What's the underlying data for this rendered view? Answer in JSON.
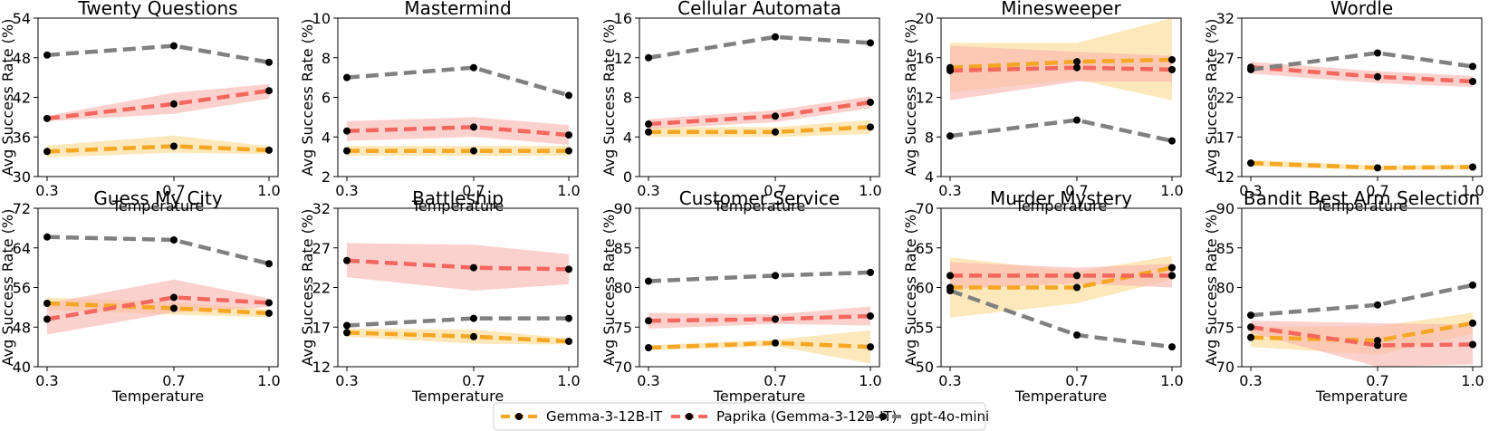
{
  "x_ticks": [
    "0.3",
    "0.7",
    "1.0"
  ],
  "x_values": [
    0.3,
    0.7,
    1.0
  ],
  "xlabel": "Temperature",
  "ylabel": "Avg Success Rate (%)",
  "series": [
    {
      "key": "gemma",
      "name": "Gemma-3-12B-IT",
      "color": "#f5a623",
      "band": "#fcd98e"
    },
    {
      "key": "paprika",
      "name": "Paprika (Gemma-3-12B-IT)",
      "color": "#f4675e",
      "band": "#f9b3ae"
    },
    {
      "key": "gpt",
      "name": "gpt-4o-mini",
      "color": "#808080",
      "band": "#cccccc"
    }
  ],
  "chart_data": [
    {
      "type": "line",
      "title": "Twenty Questions",
      "ylim": [
        30,
        54
      ],
      "yticks": [
        30,
        36,
        42,
        48,
        54
      ],
      "gemma": [
        33.8,
        34.6,
        34.0
      ],
      "gemma_band": [
        [
          32.9,
          34.7
        ],
        [
          33.6,
          36.2
        ],
        [
          33.4,
          34.6
        ]
      ],
      "paprika": [
        38.8,
        41.0,
        43.0
      ],
      "paprika_band": [
        [
          38.4,
          39.2
        ],
        [
          39.5,
          42.7
        ],
        [
          41.8,
          44.0
        ]
      ],
      "gpt": [
        48.4,
        49.8,
        47.3
      ]
    },
    {
      "type": "line",
      "title": "Mastermind",
      "ylim": [
        2,
        10
      ],
      "yticks": [
        2,
        4,
        6,
        8,
        10
      ],
      "gemma": [
        3.3,
        3.3,
        3.3
      ],
      "gemma_band": [
        [
          3.05,
          3.55
        ],
        [
          3.05,
          3.55
        ],
        [
          3.05,
          3.55
        ]
      ],
      "paprika": [
        4.3,
        4.5,
        4.1
      ],
      "paprika_band": [
        [
          3.8,
          4.8
        ],
        [
          4.0,
          5.0
        ],
        [
          3.6,
          4.6
        ]
      ],
      "gpt": [
        7.0,
        7.5,
        6.1
      ]
    },
    {
      "type": "line",
      "title": "Cellular Automata",
      "ylim": [
        0,
        16
      ],
      "yticks": [
        0,
        4,
        8,
        12,
        16
      ],
      "gemma": [
        4.5,
        4.5,
        5.0
      ],
      "gemma_band": [
        [
          4.0,
          5.0
        ],
        [
          4.0,
          5.0
        ],
        [
          4.3,
          5.7
        ]
      ],
      "paprika": [
        5.3,
        6.1,
        7.5
      ],
      "paprika_band": [
        [
          4.8,
          5.8
        ],
        [
          5.5,
          6.7
        ],
        [
          6.9,
          8.1
        ]
      ],
      "gpt": [
        12.0,
        14.1,
        13.5
      ]
    },
    {
      "type": "line",
      "title": "Minesweeper",
      "ylim": [
        4,
        20
      ],
      "yticks": [
        4,
        8,
        12,
        16,
        20
      ],
      "gemma": [
        15.0,
        15.6,
        15.8
      ],
      "gemma_band": [
        [
          12.5,
          17.5
        ],
        [
          13.8,
          17.5
        ],
        [
          11.7,
          20.0
        ]
      ],
      "paprika": [
        14.7,
        15.0,
        14.8
      ],
      "paprika_band": [
        [
          11.7,
          17.2
        ],
        [
          13.6,
          16.6
        ],
        [
          13.6,
          16.2
        ]
      ],
      "gpt": [
        8.1,
        9.7,
        7.6
      ]
    },
    {
      "type": "line",
      "title": "Wordle",
      "ylim": [
        12,
        32
      ],
      "yticks": [
        12,
        17,
        22,
        27,
        32
      ],
      "gemma": [
        13.7,
        13.1,
        13.2
      ],
      "gemma_band": [
        [
          13.3,
          14.1
        ],
        [
          12.8,
          13.4
        ],
        [
          12.9,
          13.5
        ]
      ],
      "paprika": [
        25.8,
        24.6,
        24.0
      ],
      "paprika_band": [
        [
          25.0,
          26.5
        ],
        [
          23.8,
          25.3
        ],
        [
          23.3,
          24.7
        ]
      ],
      "gpt": [
        25.5,
        27.6,
        25.9
      ]
    },
    {
      "type": "line",
      "title": "Guess My City",
      "ylim": [
        40,
        72
      ],
      "yticks": [
        40,
        48,
        56,
        64,
        72
      ],
      "gemma": [
        52.8,
        51.8,
        50.8
      ],
      "gemma_band": [
        [
          51.5,
          54.0
        ],
        [
          50.5,
          53.0
        ],
        [
          50.0,
          51.6
        ]
      ],
      "paprika": [
        49.6,
        54.0,
        52.9
      ],
      "paprika_band": [
        [
          46.5,
          52.8
        ],
        [
          51.0,
          57.6
        ],
        [
          52.0,
          53.8
        ]
      ],
      "gpt": [
        66.2,
        65.6,
        60.8
      ]
    },
    {
      "type": "line",
      "title": "Battleship",
      "ylim": [
        12,
        32
      ],
      "yticks": [
        12,
        17,
        22,
        27,
        32
      ],
      "gemma": [
        16.3,
        15.8,
        15.2
      ],
      "gemma_band": [
        [
          15.8,
          16.8
        ],
        [
          14.9,
          16.7
        ],
        [
          14.8,
          15.6
        ]
      ],
      "paprika": [
        25.4,
        24.5,
        24.3
      ],
      "paprika_band": [
        [
          23.3,
          27.6
        ],
        [
          21.6,
          27.4
        ],
        [
          22.4,
          26.2
        ]
      ],
      "gpt": [
        17.2,
        18.1,
        18.1
      ]
    },
    {
      "type": "line",
      "title": "Customer Service",
      "ylim": [
        70,
        90
      ],
      "yticks": [
        70,
        75,
        80,
        85,
        90
      ],
      "gemma": [
        72.4,
        73.0,
        72.5
      ],
      "gemma_band": [
        [
          72.1,
          72.7
        ],
        [
          72.6,
          73.4
        ],
        [
          70.4,
          74.6
        ]
      ],
      "paprika": [
        75.8,
        76.0,
        76.4
      ],
      "paprika_band": [
        [
          74.8,
          76.8
        ],
        [
          75.4,
          76.6
        ],
        [
          75.2,
          77.6
        ]
      ],
      "gpt": [
        80.8,
        81.5,
        81.9
      ]
    },
    {
      "type": "line",
      "title": "Murder Mystery",
      "ylim": [
        50,
        70
      ],
      "yticks": [
        50,
        55,
        60,
        65,
        70
      ],
      "gemma": [
        60.0,
        60.0,
        62.5
      ],
      "gemma_band": [
        [
          56.2,
          63.8
        ],
        [
          58.0,
          62.0
        ],
        [
          61.0,
          64.0
        ]
      ],
      "paprika": [
        61.5,
        61.5,
        61.5
      ],
      "paprika_band": [
        [
          59.8,
          63.2
        ],
        [
          60.5,
          62.5
        ],
        [
          60.0,
          63.0
        ]
      ],
      "gpt": [
        59.6,
        54.0,
        52.5
      ]
    },
    {
      "type": "line",
      "title": "Bandit Best Arm Selection",
      "ylim": [
        70,
        90
      ],
      "yticks": [
        70,
        75,
        80,
        85,
        90
      ],
      "gemma": [
        73.7,
        73.3,
        75.5
      ],
      "gemma_band": [
        [
          72.5,
          75.0
        ],
        [
          71.5,
          75.1
        ],
        [
          74.2,
          76.8
        ]
      ],
      "paprika": [
        75.0,
        72.7,
        72.8
      ],
      "paprika_band": [
        [
          74.3,
          75.8
        ],
        [
          70.0,
          75.5
        ],
        [
          70.3,
          75.3
        ]
      ],
      "gpt": [
        76.5,
        77.8,
        80.3
      ]
    }
  ]
}
